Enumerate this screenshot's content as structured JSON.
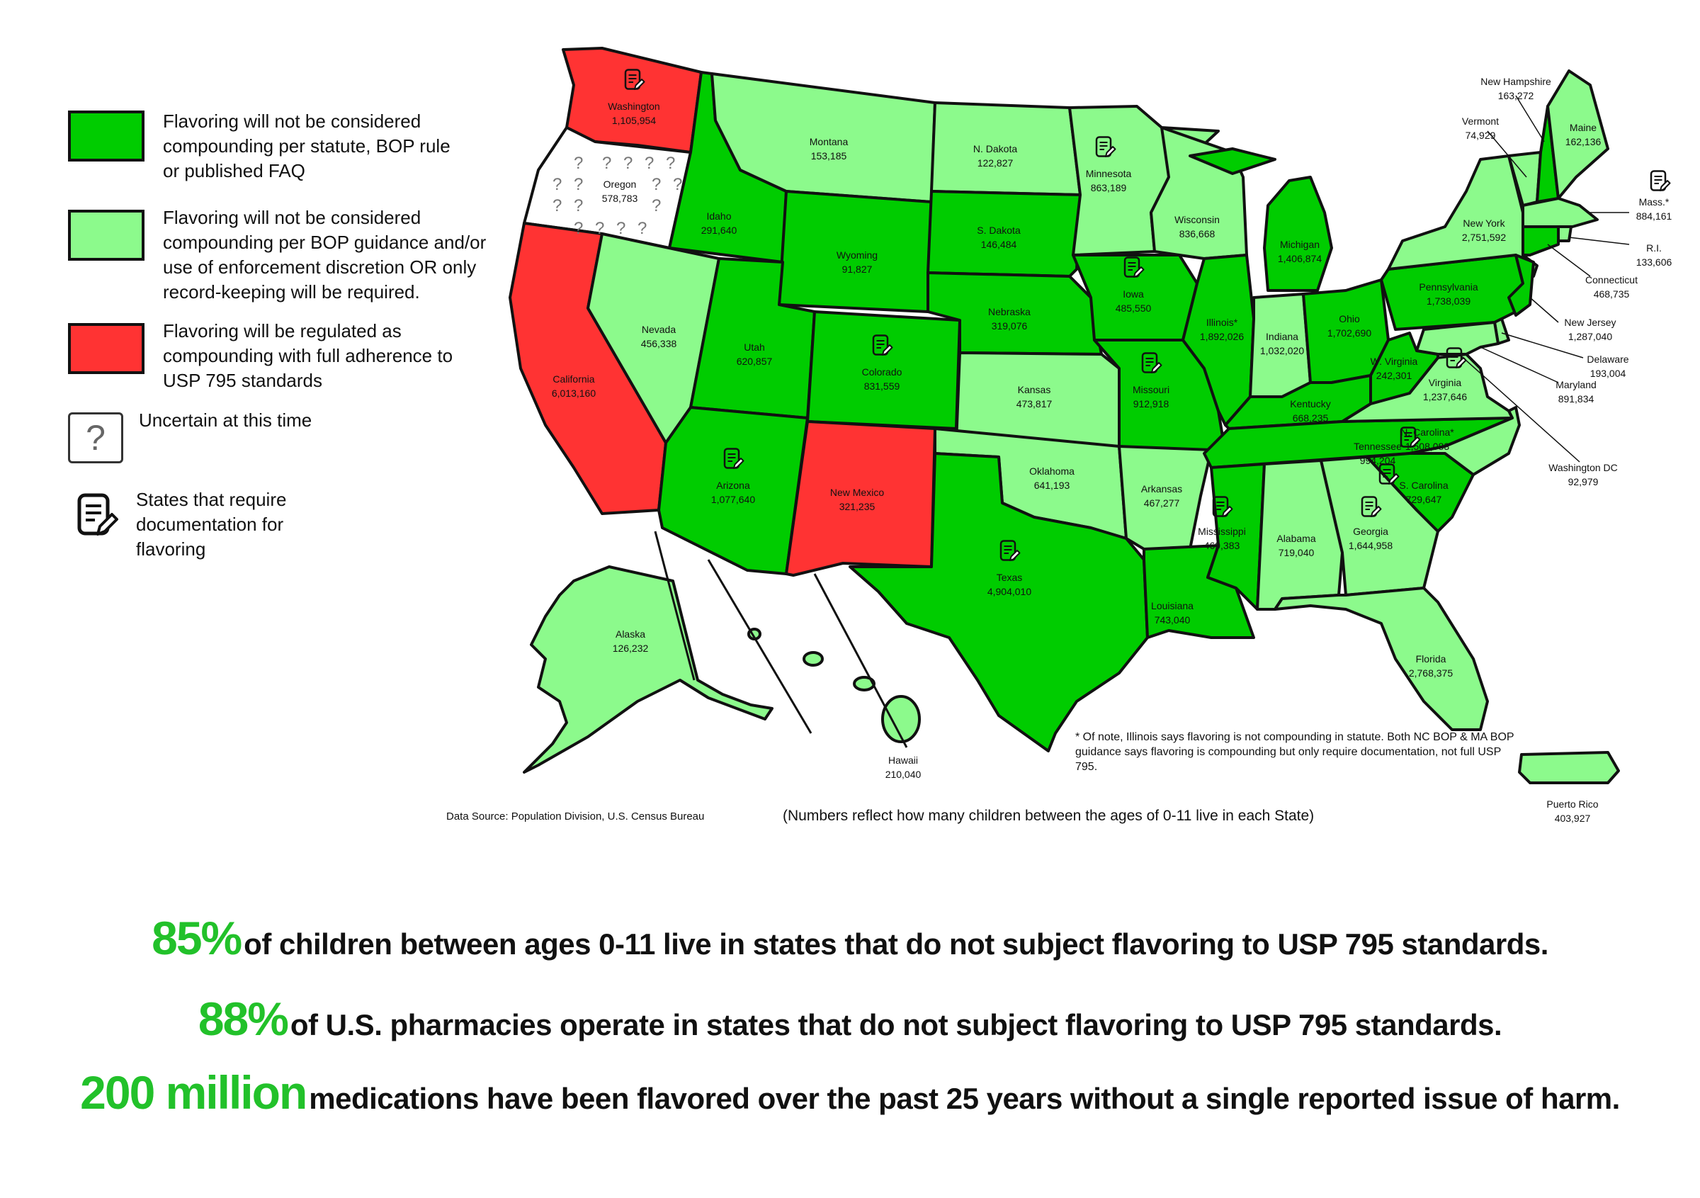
{
  "legend": {
    "items": [
      {
        "text": "Flavoring will not be considered compounding per statute, BOP rule or published FAQ",
        "color": "#00cc00"
      },
      {
        "text": "Flavoring will not be considered compounding per BOP guidance and/or use of enforcement discretion OR only record-keeping will be required.",
        "color": "#8cfa8c"
      },
      {
        "text": "Flavoring will be regulated as compounding with full adherence to USP 795 standards",
        "color": "#ff3333"
      },
      {
        "text": "Uncertain at this time",
        "color": "#ffffff",
        "icon": "question-mark"
      },
      {
        "text": "States that require documentation for flavoring",
        "icon": "document-pencil-icon"
      }
    ]
  },
  "colors": {
    "dark_green": "#00cc00",
    "light_green": "#8cfa8c",
    "red": "#ff3333",
    "uncertain": "#ffffff",
    "border": "#111111",
    "stat_green": "#22c12a"
  },
  "states": [
    {
      "name": "Washington",
      "value": "1,105,954",
      "category": "red",
      "documentation": true
    },
    {
      "name": "Oregon",
      "value": "578,783",
      "category": "uncertain"
    },
    {
      "name": "California",
      "value": "6,013,160",
      "category": "red"
    },
    {
      "name": "Idaho",
      "value": "291,640",
      "category": "dark"
    },
    {
      "name": "Nevada",
      "value": "456,338",
      "category": "light"
    },
    {
      "name": "Montana",
      "value": "153,185",
      "category": "light"
    },
    {
      "name": "Wyoming",
      "value": "91,827",
      "category": "dark"
    },
    {
      "name": "Utah",
      "value": "620,857",
      "category": "dark"
    },
    {
      "name": "Colorado",
      "value": "831,559",
      "category": "dark",
      "documentation": true
    },
    {
      "name": "Arizona",
      "value": "1,077,640",
      "category": "dark",
      "documentation": true
    },
    {
      "name": "New Mexico",
      "value": "321,235",
      "category": "red"
    },
    {
      "name": "N. Dakota",
      "value": "122,827",
      "category": "light"
    },
    {
      "name": "S. Dakota",
      "value": "146,484",
      "category": "dark"
    },
    {
      "name": "Nebraska",
      "value": "319,076",
      "category": "dark"
    },
    {
      "name": "Kansas",
      "value": "473,817",
      "category": "light"
    },
    {
      "name": "Oklahoma",
      "value": "641,193",
      "category": "light"
    },
    {
      "name": "Texas",
      "value": "4,904,010",
      "category": "dark",
      "documentation": true
    },
    {
      "name": "Minnesota",
      "value": "863,189",
      "category": "light",
      "documentation": true
    },
    {
      "name": "Iowa",
      "value": "485,550",
      "category": "dark",
      "documentation": true
    },
    {
      "name": "Missouri",
      "value": "912,918",
      "category": "dark",
      "documentation": true
    },
    {
      "name": "Arkansas",
      "value": "467,277",
      "category": "light"
    },
    {
      "name": "Louisiana",
      "value": "743,040",
      "category": "dark"
    },
    {
      "name": "Wisconsin",
      "value": "836,668",
      "category": "light"
    },
    {
      "name": "Illinois*",
      "value": "1,892,026",
      "category": "dark"
    },
    {
      "name": "Michigan",
      "value": "1,406,874",
      "category": "dark"
    },
    {
      "name": "Indiana",
      "value": "1,032,020",
      "category": "light"
    },
    {
      "name": "Ohio",
      "value": "1,702,690",
      "category": "dark"
    },
    {
      "name": "Kentucky",
      "value": "668,235",
      "category": "dark"
    },
    {
      "name": "Tennessee",
      "value": "994,204",
      "category": "dark"
    },
    {
      "name": "Mississippi",
      "value": "469,383",
      "category": "dark",
      "documentation": true
    },
    {
      "name": "Alabama",
      "value": "719,040",
      "category": "light"
    },
    {
      "name": "Georgia",
      "value": "1,644,958",
      "category": "light",
      "documentation": true
    },
    {
      "name": "Florida",
      "value": "2,768,375",
      "category": "light"
    },
    {
      "name": "S. Carolina",
      "value": "729,647",
      "category": "dark",
      "documentation": true
    },
    {
      "name": "N. Carolina*",
      "value": "1,508,083",
      "category": "light",
      "documentation": true
    },
    {
      "name": "Virginia",
      "value": "1,237,646",
      "category": "light",
      "documentation": true
    },
    {
      "name": "W. Virginia",
      "value": "242,301",
      "category": "dark"
    },
    {
      "name": "Pennsylvania",
      "value": "1,738,039",
      "category": "dark"
    },
    {
      "name": "New York",
      "value": "2,751,592",
      "category": "light"
    },
    {
      "name": "Vermont",
      "value": "74,929",
      "category": "light"
    },
    {
      "name": "New Hampshire",
      "value": "163,272",
      "category": "dark"
    },
    {
      "name": "Maine",
      "value": "162,136",
      "category": "light"
    },
    {
      "name": "Mass.*",
      "value": "884,161",
      "category": "light",
      "documentation": true
    },
    {
      "name": "R.I.",
      "value": "133,606",
      "category": "light"
    },
    {
      "name": "Connecticut",
      "value": "468,735",
      "category": "dark"
    },
    {
      "name": "New Jersey",
      "value": "1,287,040",
      "category": "dark"
    },
    {
      "name": "Delaware",
      "value": "193,004",
      "category": "light"
    },
    {
      "name": "Maryland",
      "value": "891,834",
      "category": "light"
    },
    {
      "name": "Washington DC",
      "value": "92,979",
      "category": "light"
    },
    {
      "name": "Alaska",
      "value": "126,232",
      "category": "light"
    },
    {
      "name": "Hawaii",
      "value": "210,040",
      "category": "light"
    },
    {
      "name": "Puerto Rico",
      "value": "403,927",
      "category": "light"
    }
  ],
  "footnote": "* Of note, Illinois says flavoring is not compounding in statute. Both NC BOP & MA BOP guidance says flavoring is compounding but only require documentation, not full USP 795.",
  "data_source": "Data Source: Population Division, U.S. Census Bureau",
  "numbers_note": "(Numbers reflect how many children between the ages of 0-11 live in each State)",
  "stats": [
    {
      "big": "85%",
      "rest": "of children between ages 0-11 live in states that do not subject flavoring to USP 795 standards."
    },
    {
      "big": "88%",
      "rest": "of U.S. pharmacies operate in states that do not subject flavoring to USP 795 standards."
    },
    {
      "big": "200 million",
      "rest": "medications have been flavored over the past 25 years without a single reported issue of harm."
    }
  ]
}
